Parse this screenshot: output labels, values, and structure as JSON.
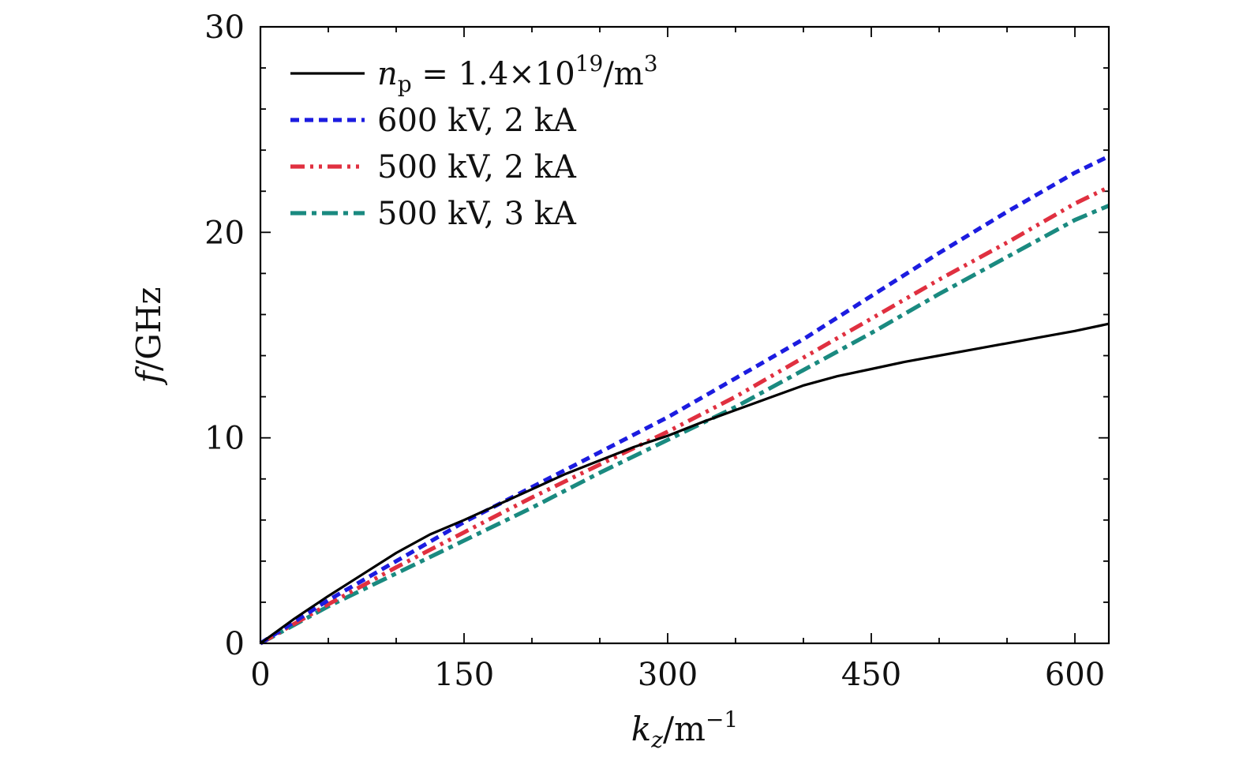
{
  "chart_data": {
    "type": "line",
    "title": "",
    "xlabel": "k_z/m^-1",
    "ylabel": "f/GHz",
    "xlim": [
      0,
      625
    ],
    "ylim": [
      0,
      30
    ],
    "x_ticks": [
      0,
      150,
      300,
      450,
      600
    ],
    "x_tick_labels": [
      "0",
      "150",
      "300",
      "450",
      "600"
    ],
    "y_ticks": [
      0,
      10,
      20,
      30
    ],
    "y_tick_labels": [
      "0",
      "10",
      "20",
      "30"
    ],
    "grid": false,
    "legend_position": "top-left",
    "series": [
      {
        "name": "n_p = 1.4×10^19/m^3",
        "color": "#000000",
        "dash": "solid",
        "x": [
          0,
          25,
          50,
          75,
          100,
          125,
          150,
          175,
          200,
          225,
          250,
          275,
          300,
          325,
          350,
          375,
          400,
          425,
          450,
          475,
          500,
          525,
          550,
          575,
          600,
          625
        ],
        "y": [
          0,
          1.2,
          2.3,
          3.35,
          4.4,
          5.3,
          6.0,
          6.75,
          7.5,
          8.25,
          8.9,
          9.55,
          10.1,
          10.75,
          11.35,
          11.95,
          12.55,
          13.0,
          13.35,
          13.7,
          14.0,
          14.3,
          14.6,
          14.9,
          15.2,
          15.55
        ]
      },
      {
        "name": "600 kV, 2 kA",
        "color": "#1c1ce0",
        "dash": "dashed",
        "x": [
          0,
          50,
          100,
          150,
          200,
          250,
          300,
          350,
          400,
          450,
          500,
          550,
          600,
          625
        ],
        "y": [
          0,
          2.1,
          4.0,
          5.9,
          7.6,
          9.3,
          11.0,
          12.9,
          14.8,
          16.9,
          19.0,
          21.0,
          22.9,
          23.7
        ]
      },
      {
        "name": "500 kV, 2 kA",
        "color": "#e03040",
        "dash": "dash-dot-dot",
        "x": [
          0,
          50,
          100,
          150,
          200,
          250,
          300,
          350,
          400,
          450,
          500,
          550,
          600,
          625
        ],
        "y": [
          0,
          1.9,
          3.7,
          5.4,
          7.1,
          8.7,
          10.3,
          12.0,
          13.9,
          15.8,
          17.7,
          19.5,
          21.4,
          22.2
        ]
      },
      {
        "name": "500 kV, 3 kA",
        "color": "#1a8a80",
        "dash": "dash-dot",
        "x": [
          0,
          50,
          100,
          150,
          200,
          250,
          300,
          350,
          400,
          450,
          500,
          550,
          600,
          625
        ],
        "y": [
          0,
          1.8,
          3.4,
          5.0,
          6.6,
          8.3,
          9.9,
          11.5,
          13.3,
          15.1,
          17.0,
          18.8,
          20.6,
          21.3
        ]
      }
    ]
  }
}
